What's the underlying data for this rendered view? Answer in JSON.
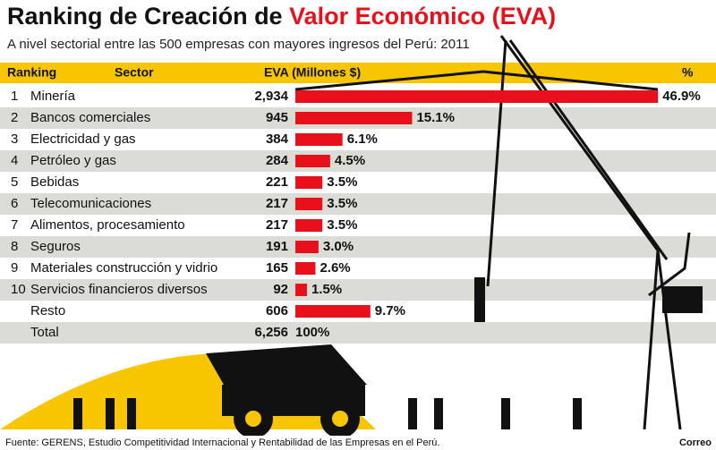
{
  "chart_data": {
    "type": "bar",
    "title": "Ranking de Creación de",
    "title_highlight": "Valor Económico (EVA)",
    "subtitle": "A nivel sectorial entre las 500 empresas con mayores ingresos del Perú: 2011",
    "rank_header": "Ranking",
    "category_header": "Sector",
    "ranks": [
      1,
      2,
      3,
      4,
      5,
      6,
      7,
      8,
      9,
      10,
      null
    ],
    "categories": [
      "Minería",
      "Bancos comerciales",
      "Electricidad y gas",
      "Petróleo y gas",
      "Bebidas",
      "Telecomunicaciones",
      "Alimentos, procesamiento",
      "Seguros",
      "Materiales construcción y vidrio",
      "Servicios financieros diversos",
      "Resto"
    ],
    "series": [
      {
        "name": "EVA (Millones $)",
        "values": [
          2934,
          945,
          384,
          284,
          221,
          217,
          217,
          191,
          165,
          92,
          606
        ],
        "value_labels": [
          "2,934",
          "945",
          "384",
          "284",
          "221",
          "217",
          "217",
          "191",
          "165",
          "92",
          "606"
        ]
      },
      {
        "name": "%",
        "color": "#e8101a",
        "values": [
          46.9,
          15.1,
          6.1,
          4.5,
          3.5,
          3.5,
          3.5,
          3.0,
          2.6,
          1.5,
          9.7
        ],
        "value_labels": [
          "46.9%",
          "15.1%",
          "6.1%",
          "4.5%",
          "3.5%",
          "3.5%",
          "3.5%",
          "3.0%",
          "2.6%",
          "1.5%",
          "9.7%"
        ]
      }
    ],
    "total": {
      "label": "Total",
      "value": 6256,
      "value_label": "6,256",
      "percent": 100,
      "percent_label": "100%"
    },
    "source": "Fuente: GERENS, Estudio Competitividad Internacional y Rentabilidad de las Empresas en el Perú.",
    "credit": "Correo"
  }
}
